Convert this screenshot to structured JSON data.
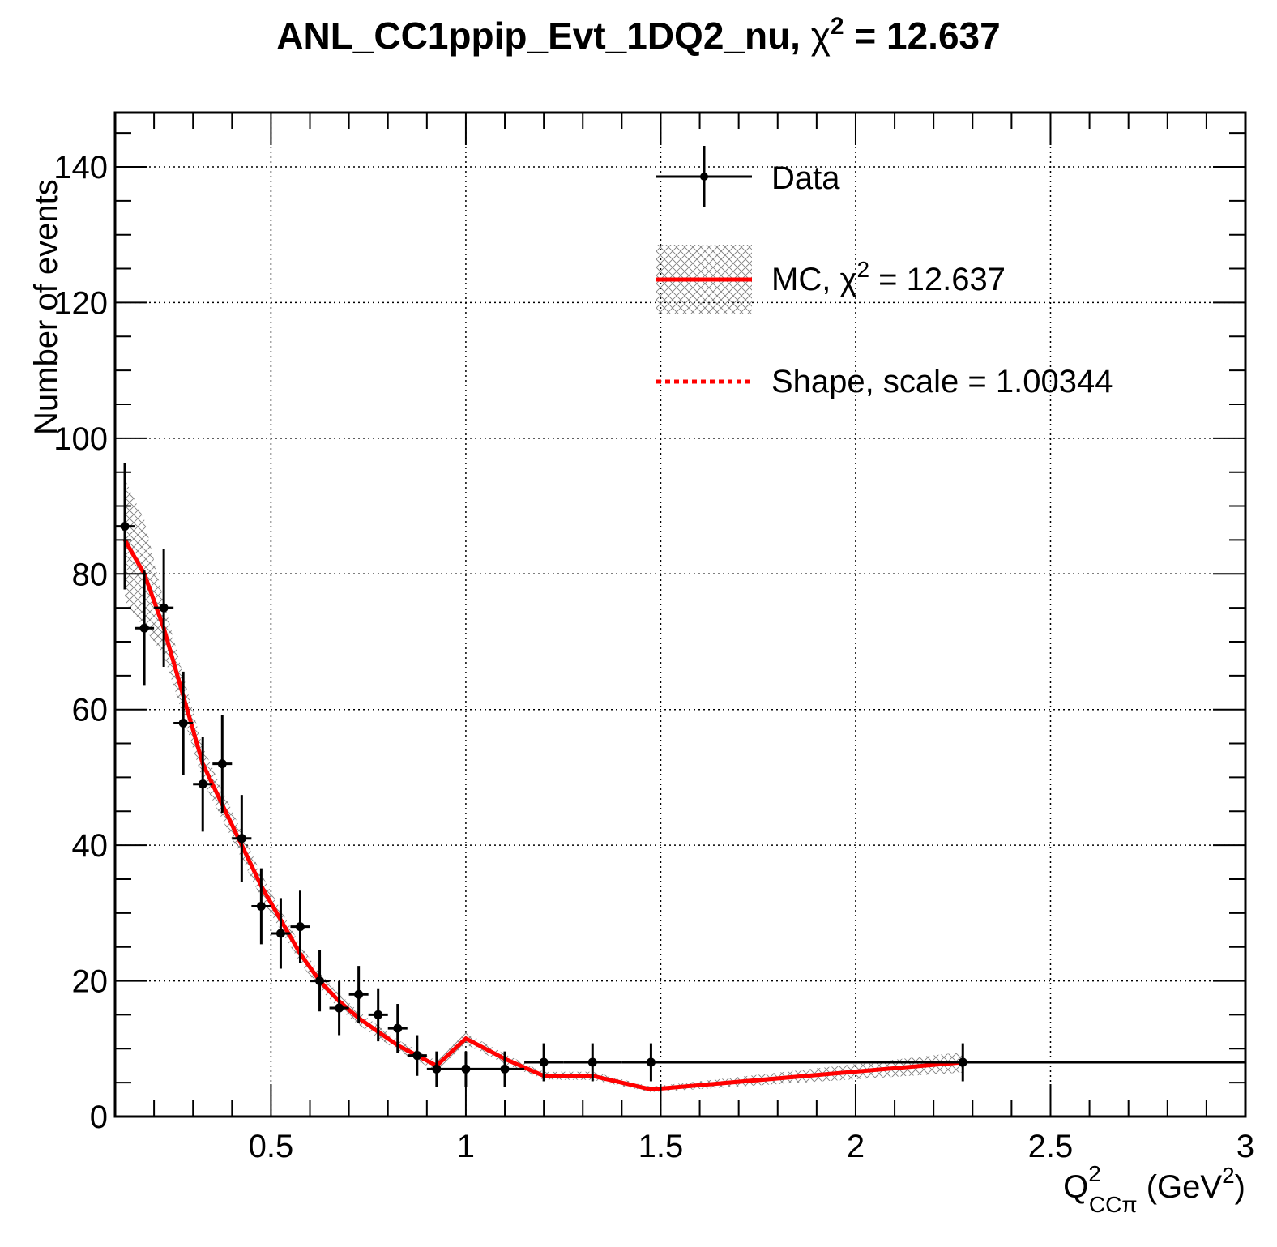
{
  "chart_data": {
    "type": "scatter",
    "title": "ANL_CC1ppip_Evt_1DQ2_nu, χ² = 12.637",
    "title_parts": {
      "prefix": "ANL_CC1ppip_Evt_1DQ2_nu, ",
      "chi": "χ",
      "sup": "2",
      "suffix": " = 12.637"
    },
    "xlabel": "Q²CCπ (GeV²)",
    "xlabel_parts": {
      "q": "Q",
      "sup": "2",
      "sub": "CCπ",
      "unit_open": " (GeV",
      "unit_sup": "2",
      "unit_close": ")"
    },
    "ylabel": "Number of events",
    "xlim": [
      0.1,
      3.0
    ],
    "ylim": [
      0,
      148
    ],
    "grid": true,
    "legend_position": "top-right",
    "x_ticks": [
      {
        "value": 0.5,
        "label": "0.5"
      },
      {
        "value": 1,
        "label": "1"
      },
      {
        "value": 1.5,
        "label": "1.5"
      },
      {
        "value": 2,
        "label": "2"
      },
      {
        "value": 2.5,
        "label": "2.5"
      },
      {
        "value": 3,
        "label": "3"
      }
    ],
    "y_ticks": [
      {
        "value": 0,
        "label": "0"
      },
      {
        "value": 20,
        "label": "20"
      },
      {
        "value": 40,
        "label": "40"
      },
      {
        "value": 60,
        "label": "60"
      },
      {
        "value": 80,
        "label": "80"
      },
      {
        "value": 100,
        "label": "100"
      },
      {
        "value": 120,
        "label": "120"
      },
      {
        "value": 140,
        "label": "140"
      }
    ],
    "series": [
      {
        "name": "Data",
        "kind": "points-with-errors",
        "color": "#000000",
        "points": [
          {
            "x": 0.125,
            "y": 87,
            "xlo": 0.1,
            "xhi": 0.15,
            "err": 9.3
          },
          {
            "x": 0.175,
            "y": 72,
            "xlo": 0.15,
            "xhi": 0.2,
            "err": 8.5
          },
          {
            "x": 0.225,
            "y": 75,
            "xlo": 0.2,
            "xhi": 0.25,
            "err": 8.7
          },
          {
            "x": 0.275,
            "y": 58,
            "xlo": 0.25,
            "xhi": 0.3,
            "err": 7.6
          },
          {
            "x": 0.325,
            "y": 49,
            "xlo": 0.3,
            "xhi": 0.35,
            "err": 7.0
          },
          {
            "x": 0.375,
            "y": 52,
            "xlo": 0.35,
            "xhi": 0.4,
            "err": 7.2
          },
          {
            "x": 0.425,
            "y": 41,
            "xlo": 0.4,
            "xhi": 0.45,
            "err": 6.4
          },
          {
            "x": 0.475,
            "y": 31,
            "xlo": 0.45,
            "xhi": 0.5,
            "err": 5.6
          },
          {
            "x": 0.525,
            "y": 27,
            "xlo": 0.5,
            "xhi": 0.55,
            "err": 5.2
          },
          {
            "x": 0.575,
            "y": 28,
            "xlo": 0.55,
            "xhi": 0.6,
            "err": 5.3
          },
          {
            "x": 0.625,
            "y": 20,
            "xlo": 0.6,
            "xhi": 0.65,
            "err": 4.5
          },
          {
            "x": 0.675,
            "y": 16,
            "xlo": 0.65,
            "xhi": 0.7,
            "err": 4.0
          },
          {
            "x": 0.725,
            "y": 18,
            "xlo": 0.7,
            "xhi": 0.75,
            "err": 4.2
          },
          {
            "x": 0.775,
            "y": 15,
            "xlo": 0.75,
            "xhi": 0.8,
            "err": 3.9
          },
          {
            "x": 0.825,
            "y": 13,
            "xlo": 0.8,
            "xhi": 0.85,
            "err": 3.6
          },
          {
            "x": 0.875,
            "y": 9,
            "xlo": 0.85,
            "xhi": 0.9,
            "err": 3.0
          },
          {
            "x": 0.925,
            "y": 7,
            "xlo": 0.9,
            "xhi": 0.95,
            "err": 2.6
          },
          {
            "x": 1.0,
            "y": 7,
            "xlo": 0.95,
            "xhi": 1.05,
            "err": 2.6
          },
          {
            "x": 1.1,
            "y": 7,
            "xlo": 1.05,
            "xhi": 1.15,
            "err": 2.6
          },
          {
            "x": 1.2,
            "y": 8,
            "xlo": 1.15,
            "xhi": 1.25,
            "err": 2.8
          },
          {
            "x": 1.325,
            "y": 8,
            "xlo": 1.25,
            "xhi": 1.4,
            "err": 2.8
          },
          {
            "x": 1.475,
            "y": 8,
            "xlo": 1.4,
            "xhi": 1.55,
            "err": 2.8
          },
          {
            "x": 2.275,
            "y": 8,
            "xlo": 1.55,
            "xhi": 3.0,
            "err": 2.8
          }
        ]
      },
      {
        "name": "MC, χ² = 12.637",
        "kind": "line-with-band",
        "color": "#ff0000",
        "band_color": "#808080",
        "points": [
          {
            "x": 0.125,
            "y": 85,
            "err": 9.0
          },
          {
            "x": 0.175,
            "y": 80,
            "err": 8.0
          },
          {
            "x": 0.225,
            "y": 72,
            "err": 4.0
          },
          {
            "x": 0.275,
            "y": 62,
            "err": 3.0
          },
          {
            "x": 0.325,
            "y": 52,
            "err": 2.5
          },
          {
            "x": 0.375,
            "y": 46,
            "err": 2.2
          },
          {
            "x": 0.425,
            "y": 40,
            "err": 2.0
          },
          {
            "x": 0.475,
            "y": 34,
            "err": 1.8
          },
          {
            "x": 0.525,
            "y": 29,
            "err": 1.5
          },
          {
            "x": 0.575,
            "y": 24,
            "err": 1.3
          },
          {
            "x": 0.625,
            "y": 20,
            "err": 1.2
          },
          {
            "x": 0.675,
            "y": 17,
            "err": 1.1
          },
          {
            "x": 0.725,
            "y": 14.5,
            "err": 1.0
          },
          {
            "x": 0.775,
            "y": 12.5,
            "err": 0.9
          },
          {
            "x": 0.825,
            "y": 10.5,
            "err": 0.8
          },
          {
            "x": 0.875,
            "y": 9,
            "err": 0.8
          },
          {
            "x": 0.925,
            "y": 7.5,
            "err": 0.7
          },
          {
            "x": 1.0,
            "y": 11.5,
            "err": 0.9
          },
          {
            "x": 1.1,
            "y": 8.5,
            "err": 0.7
          },
          {
            "x": 1.2,
            "y": 6,
            "err": 0.6
          },
          {
            "x": 1.325,
            "y": 6,
            "err": 0.6
          },
          {
            "x": 1.475,
            "y": 4,
            "err": 0.4
          },
          {
            "x": 2.275,
            "y": 8,
            "err": 1.5
          }
        ]
      },
      {
        "name": "Shape, scale = 1.00344",
        "kind": "dotted-line",
        "color": "#ff0000",
        "scale": 1.00344
      }
    ],
    "legend": [
      {
        "label": "Data",
        "style": "marker-errorbar"
      },
      {
        "label_main": "MC, ",
        "label_chi": "χ",
        "label_sup": "2",
        "label_rest": " = 12.637",
        "style": "line-band"
      },
      {
        "label": "Shape, scale = 1.00344",
        "style": "dotted"
      }
    ]
  }
}
